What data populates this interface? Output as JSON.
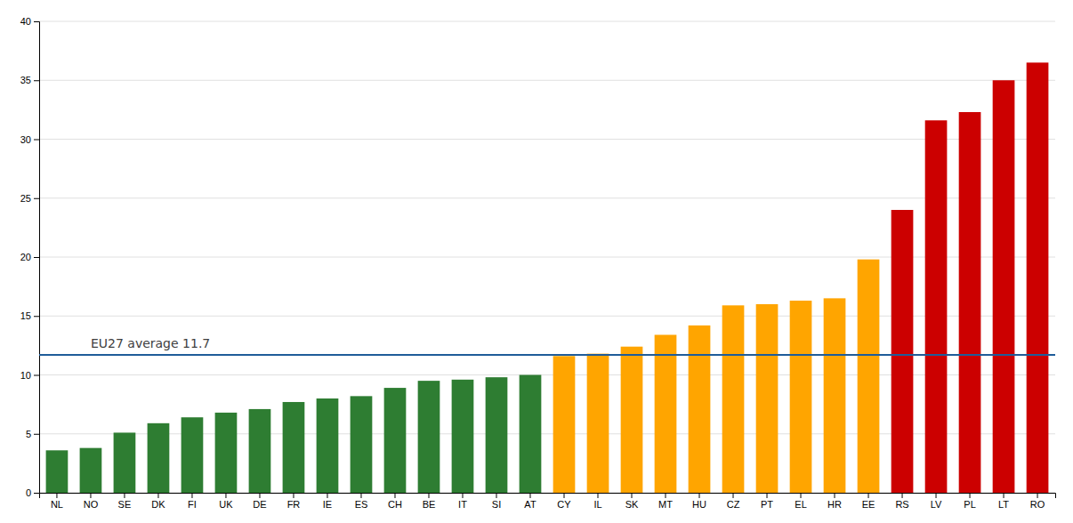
{
  "chart_data": {
    "type": "bar",
    "categories": [
      "NL",
      "NO",
      "SE",
      "DK",
      "FI",
      "UK",
      "DE",
      "FR",
      "IE",
      "ES",
      "CH",
      "BE",
      "IT",
      "SI",
      "AT",
      "CY",
      "IL",
      "SK",
      "MT",
      "HU",
      "CZ",
      "PT",
      "EL",
      "HR",
      "EE",
      "RS",
      "LV",
      "PL",
      "LT",
      "RO"
    ],
    "values": [
      3.6,
      3.8,
      5.1,
      5.9,
      6.4,
      6.8,
      7.1,
      7.7,
      8.0,
      8.2,
      8.9,
      9.5,
      9.6,
      9.8,
      10.0,
      11.6,
      11.8,
      12.4,
      13.4,
      14.2,
      15.9,
      16.0,
      16.3,
      16.5,
      19.8,
      24.0,
      31.6,
      32.3,
      35.0,
      36.5
    ],
    "colors": [
      "#2e7d32",
      "#2e7d32",
      "#2e7d32",
      "#2e7d32",
      "#2e7d32",
      "#2e7d32",
      "#2e7d32",
      "#2e7d32",
      "#2e7d32",
      "#2e7d32",
      "#2e7d32",
      "#2e7d32",
      "#2e7d32",
      "#2e7d32",
      "#2e7d32",
      "#ffa500",
      "#ffa500",
      "#ffa500",
      "#ffa500",
      "#ffa500",
      "#ffa500",
      "#ffa500",
      "#ffa500",
      "#ffa500",
      "#ffa500",
      "#cc0000",
      "#cc0000",
      "#cc0000",
      "#cc0000",
      "#cc0000"
    ],
    "annotations": [
      {
        "text": "EU27 average 11.7",
        "y": 11.7,
        "color": "#1f5c99"
      }
    ],
    "ylim": [
      0,
      40
    ],
    "yticks": [
      0,
      5,
      10,
      15,
      20,
      25,
      30,
      35,
      40
    ],
    "grid": true
  }
}
